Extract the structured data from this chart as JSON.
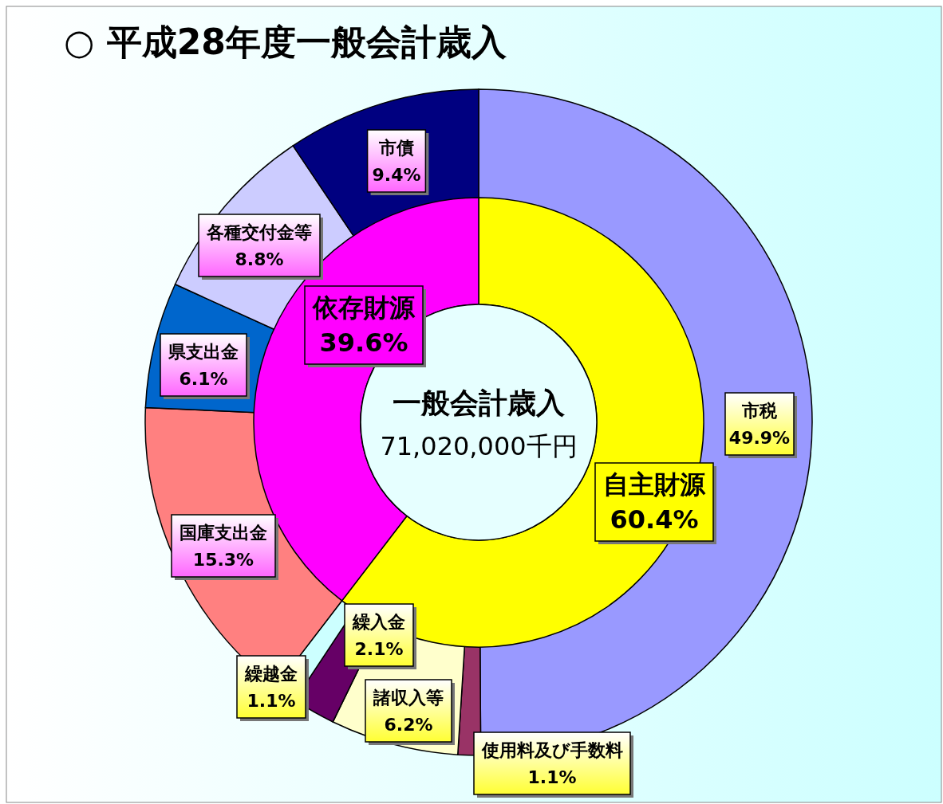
{
  "chart_data": [
    {
      "type": "donut",
      "title": "○ 平成28年度一般会計歳入",
      "data_labels": true,
      "categories": [
        "市税",
        "使用料及び手数料",
        "諸収入等",
        "繰入金",
        "繰越金",
        "国庫支出金",
        "県支出金",
        "各種交付金等",
        "市債"
      ],
      "values": [
        49.9,
        1.1,
        6.2,
        2.1,
        1.1,
        15.3,
        6.1,
        8.8,
        9.4
      ],
      "value_labels": [
        "49.9%",
        "1.1%",
        "6.2%",
        "2.1%",
        "1.1%",
        "15.3%",
        "6.1%",
        "8.8%",
        "9.4%"
      ],
      "colors": [
        "#9999ff",
        "#993366",
        "#ffffcc",
        "#660066",
        "#ccffff",
        "#ff8080",
        "#0066cc",
        "#ccccff",
        "#000080"
      ]
    },
    {
      "type": "donut",
      "data_labels": true,
      "categories": [
        "自主財源",
        "依存財源"
      ],
      "values": [
        60.4,
        39.6
      ],
      "value_labels": [
        "60.4%",
        "39.6%"
      ],
      "colors": [
        "#ffff00",
        "#ff00ff"
      ],
      "annotations": [
        "一般会計歳入",
        "71,020,000千円"
      ]
    }
  ]
}
